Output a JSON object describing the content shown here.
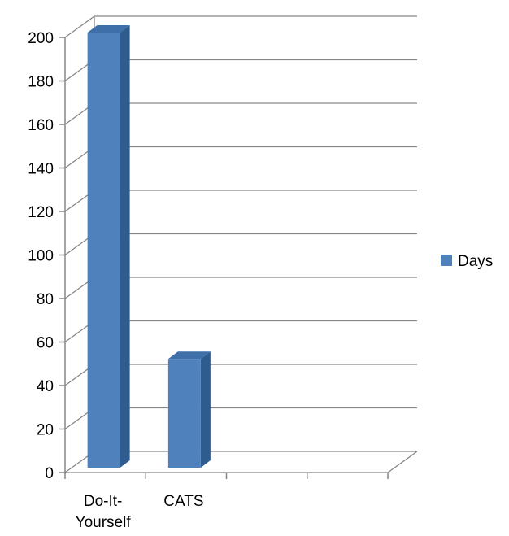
{
  "chart_data": {
    "type": "bar",
    "style": "3d-column",
    "categories": [
      "Do-It-Yourself",
      "CATS"
    ],
    "category_lines": [
      [
        "Do-It-",
        "Yourself"
      ],
      [
        "CATS"
      ]
    ],
    "series": [
      {
        "name": "Days",
        "values": [
          200,
          50
        ],
        "color": "#4F81BD"
      }
    ],
    "title": "",
    "xlabel": "",
    "ylabel": "",
    "ylim": [
      0,
      200
    ],
    "y_ticks": [
      "0",
      "20",
      "40",
      "60",
      "80",
      "100",
      "120",
      "140",
      "160",
      "180",
      "200"
    ],
    "x_slots": 4,
    "grid": true,
    "legend": "right"
  }
}
